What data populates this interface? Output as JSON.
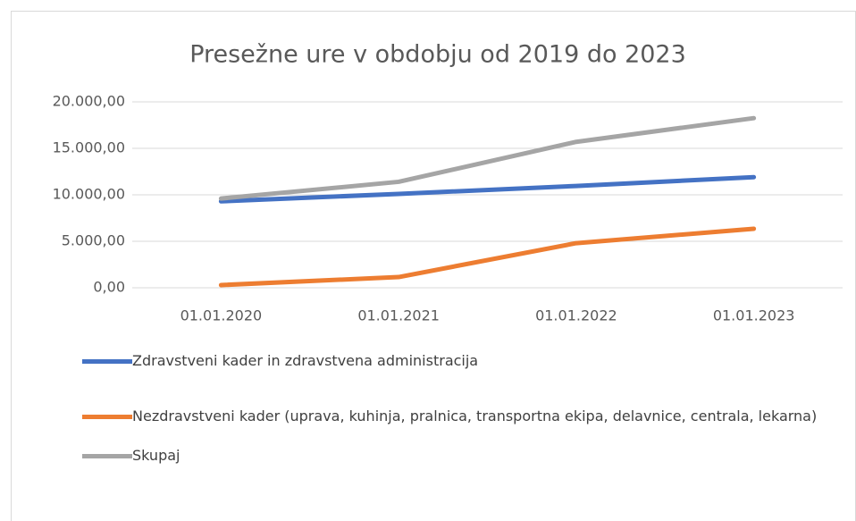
{
  "chart_data": {
    "type": "line",
    "title": "Presežne ure v obdobju od 2019 do 2023",
    "categories": [
      "01.01.2020",
      "01.01.2021",
      "01.01.2022",
      "01.01.2023"
    ],
    "series": [
      {
        "name": "Zdravstveni kader in zdravstvena administracija",
        "color": "#4472c4",
        "values": [
          9300,
          10100,
          10950,
          11900
        ]
      },
      {
        "name": "Nezdravstveni kader (uprava, kuhinja, pralnica, transportna ekipa, delavnice, centrala, lekarna)",
        "color": "#ed7d31",
        "values": [
          290,
          1150,
          4800,
          6350
        ]
      },
      {
        "name": "Skupaj",
        "color": "#a5a5a5",
        "values": [
          9600,
          11400,
          15700,
          18250
        ]
      }
    ],
    "ylim": [
      0,
      20000
    ],
    "yticks": [
      {
        "value": 0,
        "label": "0,00"
      },
      {
        "value": 5000,
        "label": "5.000,00"
      },
      {
        "value": 10000,
        "label": "10.000,00"
      },
      {
        "value": 15000,
        "label": "15.000,00"
      },
      {
        "value": 20000,
        "label": "20.000,00"
      }
    ],
    "grid": true,
    "legend": "bottom"
  }
}
